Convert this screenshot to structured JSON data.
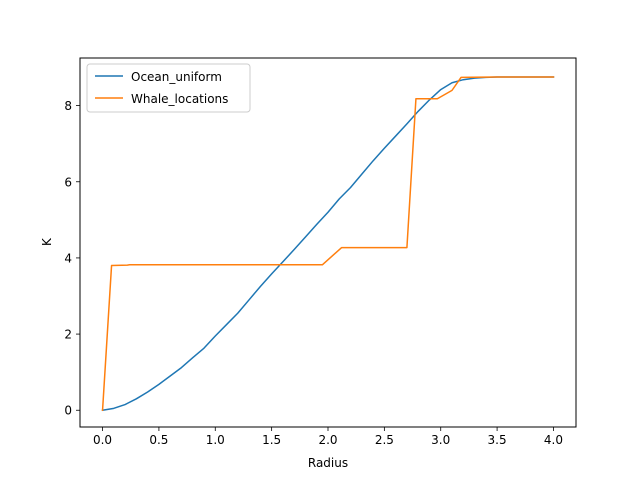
{
  "chart_data": {
    "type": "line",
    "title": "",
    "xlabel": "Radius",
    "ylabel": "K",
    "xlim": [
      -0.2,
      4.2
    ],
    "ylim": [
      -0.44,
      9.25
    ],
    "xticks": [
      0.0,
      0.5,
      1.0,
      1.5,
      2.0,
      2.5,
      3.0,
      3.5,
      4.0
    ],
    "xtick_labels": [
      "0.0",
      "0.5",
      "1.0",
      "1.5",
      "2.0",
      "2.5",
      "3.0",
      "3.5",
      "4.0"
    ],
    "yticks": [
      0,
      2,
      4,
      6,
      8
    ],
    "ytick_labels": [
      "0",
      "2",
      "4",
      "6",
      "8"
    ],
    "grid": false,
    "legend_position": "upper-left",
    "series": [
      {
        "name": "Ocean_uniform",
        "color": "#1f77b4",
        "x": [
          0.0,
          0.1,
          0.2,
          0.3,
          0.4,
          0.5,
          0.6,
          0.7,
          0.8,
          0.9,
          1.0,
          1.1,
          1.2,
          1.3,
          1.4,
          1.5,
          1.6,
          1.7,
          1.8,
          1.9,
          2.0,
          2.1,
          2.2,
          2.3,
          2.4,
          2.5,
          2.6,
          2.7,
          2.8,
          2.9,
          3.0,
          3.1,
          3.2,
          3.3,
          3.4,
          3.5,
          3.6,
          3.7,
          3.8,
          3.9,
          4.0
        ],
        "y": [
          0.0,
          0.05,
          0.15,
          0.3,
          0.48,
          0.68,
          0.9,
          1.12,
          1.38,
          1.63,
          1.95,
          2.25,
          2.55,
          2.9,
          3.25,
          3.58,
          3.9,
          4.22,
          4.55,
          4.88,
          5.2,
          5.55,
          5.85,
          6.2,
          6.55,
          6.88,
          7.2,
          7.52,
          7.85,
          8.15,
          8.42,
          8.6,
          8.68,
          8.72,
          8.74,
          8.75,
          8.75,
          8.75,
          8.75,
          8.75,
          8.75
        ]
      },
      {
        "name": "Whale_locations",
        "color": "#ff7f0e",
        "x": [
          0.0,
          0.08,
          0.22,
          0.24,
          1.95,
          2.12,
          2.7,
          2.78,
          2.97,
          3.1,
          3.18,
          3.5,
          4.0
        ],
        "y": [
          0.0,
          3.8,
          3.81,
          3.82,
          3.82,
          4.27,
          4.27,
          8.18,
          8.18,
          8.4,
          8.74,
          8.75,
          8.75
        ]
      }
    ]
  }
}
